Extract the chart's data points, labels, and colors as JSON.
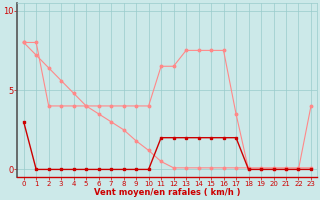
{
  "bg_color": "#cce9e9",
  "grid_color": "#99cccc",
  "line_dark_color": "#cc0000",
  "line_light_color": "#ff8888",
  "xlabel": "Vent moyen/en rafales ( km/h )",
  "ylim": [
    -0.5,
    10.5
  ],
  "xlim": [
    -0.5,
    23.5
  ],
  "yticks": [
    0,
    5,
    10
  ],
  "xticks": [
    0,
    1,
    2,
    3,
    4,
    5,
    6,
    7,
    8,
    9,
    10,
    11,
    12,
    13,
    14,
    15,
    16,
    17,
    18,
    19,
    20,
    21,
    22,
    23
  ],
  "s1_x": [
    0,
    1,
    2,
    3,
    4,
    5,
    6,
    7,
    8,
    9,
    10,
    11,
    12,
    13,
    14,
    15,
    16,
    17,
    18,
    19,
    20,
    21,
    22,
    23
  ],
  "s1_y": [
    8,
    8,
    4,
    4,
    4,
    4,
    4,
    4,
    4,
    4,
    4,
    6.5,
    6.5,
    7.5,
    7.5,
    7.5,
    7.5,
    3.5,
    0,
    0,
    0,
    0,
    0,
    4
  ],
  "s2_x": [
    0,
    1,
    2,
    3,
    4,
    5,
    6,
    7,
    8,
    9,
    10,
    11,
    12,
    13,
    14,
    15,
    16,
    17,
    18,
    19,
    20,
    21,
    22,
    23
  ],
  "s2_y": [
    8,
    7.2,
    6.4,
    5.6,
    4.8,
    4.0,
    3.5,
    3.0,
    2.5,
    1.8,
    1.2,
    0.5,
    0.1,
    0.1,
    0.1,
    0.1,
    0.1,
    0.1,
    0.1,
    0.1,
    0.1,
    0.1,
    0.1,
    0.1
  ],
  "sd_x": [
    0,
    1,
    2,
    3,
    4,
    5,
    6,
    7,
    8,
    9,
    10,
    11,
    12,
    13,
    14,
    15,
    16,
    17,
    18,
    19,
    20,
    21,
    22,
    23
  ],
  "sd_y": [
    3,
    0,
    0,
    0,
    0,
    0,
    0,
    0,
    0,
    0,
    0,
    2,
    2,
    2,
    2,
    2,
    2,
    2,
    0,
    0,
    0,
    0,
    0,
    0
  ]
}
